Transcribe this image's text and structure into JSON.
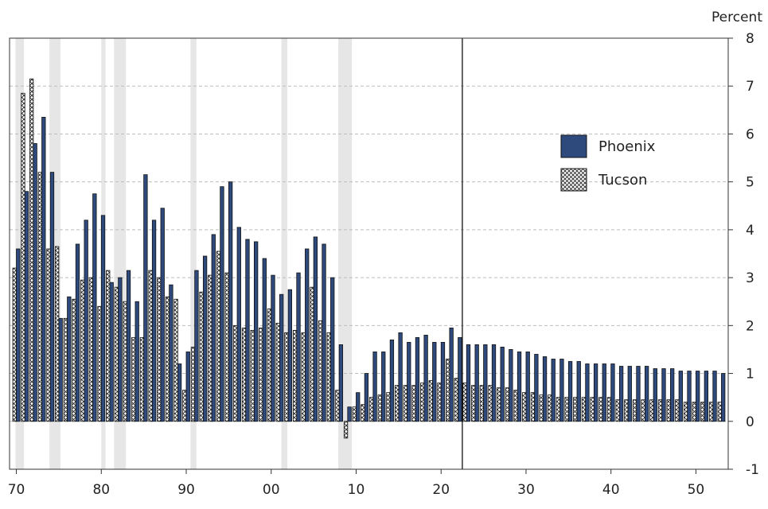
{
  "chart_data": {
    "type": "bar",
    "title": "",
    "xlabel": "",
    "ylabel": "Percent",
    "ylim": [
      -1,
      8
    ],
    "yticks": [
      "-1",
      "0",
      "1",
      "2",
      "3",
      "4",
      "5",
      "6",
      "7",
      "8"
    ],
    "x_range": [
      1970,
      2053
    ],
    "xticks": [
      {
        "year": 1970,
        "label": "70"
      },
      {
        "year": 1980,
        "label": "80"
      },
      {
        "year": 1990,
        "label": "90"
      },
      {
        "year": 2000,
        "label": "00"
      },
      {
        "year": 2010,
        "label": "10"
      },
      {
        "year": 2020,
        "label": "20"
      },
      {
        "year": 2030,
        "label": "30"
      },
      {
        "year": 2040,
        "label": "40"
      },
      {
        "year": 2050,
        "label": "50"
      }
    ],
    "forecast_start_year": 2022,
    "recession_periods": [
      [
        1969.9,
        1970.9
      ],
      [
        1973.9,
        1975.2
      ],
      [
        1980.0,
        1980.5
      ],
      [
        1981.5,
        1982.9
      ],
      [
        1990.5,
        1991.2
      ],
      [
        2001.2,
        2001.9
      ],
      [
        2007.9,
        2009.5
      ]
    ],
    "gridlines": "horizontal dashed",
    "legend_position": "right",
    "categories": [
      1970,
      1971,
      1972,
      1973,
      1974,
      1975,
      1976,
      1977,
      1978,
      1979,
      1980,
      1981,
      1982,
      1983,
      1984,
      1985,
      1986,
      1987,
      1988,
      1989,
      1990,
      1991,
      1992,
      1993,
      1994,
      1995,
      1996,
      1997,
      1998,
      1999,
      2000,
      2001,
      2002,
      2003,
      2004,
      2005,
      2006,
      2007,
      2008,
      2009,
      2010,
      2011,
      2012,
      2013,
      2014,
      2015,
      2016,
      2017,
      2018,
      2019,
      2020,
      2021,
      2022,
      2023,
      2024,
      2025,
      2026,
      2027,
      2028,
      2029,
      2030,
      2031,
      2032,
      2033,
      2034,
      2035,
      2036,
      2037,
      2038,
      2039,
      2040,
      2041,
      2042,
      2043,
      2044,
      2045,
      2046,
      2047,
      2048,
      2049,
      2050,
      2051,
      2052,
      2053
    ],
    "series": [
      {
        "name": "Phoenix",
        "pattern": "solid",
        "color": "#2e4a7d",
        "values": [
          3.6,
          4.8,
          5.8,
          6.35,
          5.2,
          2.15,
          2.6,
          3.7,
          4.2,
          4.75,
          4.3,
          2.9,
          3.0,
          3.15,
          2.5,
          5.15,
          4.2,
          4.45,
          2.85,
          1.2,
          1.45,
          3.15,
          3.45,
          3.9,
          4.9,
          5.0,
          4.05,
          3.8,
          3.75,
          3.4,
          3.05,
          2.65,
          2.75,
          3.1,
          3.6,
          3.85,
          3.7,
          3.0,
          1.6,
          0.3,
          0.6,
          1.0,
          1.45,
          1.45,
          1.7,
          1.85,
          1.65,
          1.75,
          1.8,
          1.65,
          1.65,
          1.95,
          1.75,
          1.6,
          1.6,
          1.6,
          1.6,
          1.55,
          1.5,
          1.45,
          1.45,
          1.4,
          1.35,
          1.3,
          1.3,
          1.25,
          1.25,
          1.2,
          1.2,
          1.2,
          1.2,
          1.15,
          1.15,
          1.15,
          1.15,
          1.1,
          1.1,
          1.1,
          1.05,
          1.05,
          1.05,
          1.05,
          1.05,
          1.0
        ]
      },
      {
        "name": "Tucson",
        "pattern": "crosshatch",
        "color": "#ffffff",
        "values": [
          3.2,
          6.85,
          7.15,
          5.2,
          3.6,
          3.65,
          2.15,
          2.55,
          2.95,
          3.0,
          2.4,
          3.15,
          2.8,
          2.5,
          1.75,
          1.75,
          3.15,
          3.0,
          2.6,
          2.55,
          0.65,
          1.55,
          2.7,
          3.05,
          3.55,
          3.1,
          2.0,
          1.95,
          1.9,
          1.95,
          2.35,
          2.05,
          1.85,
          1.9,
          1.85,
          2.8,
          2.1,
          1.85,
          0.65,
          -0.35,
          0.3,
          0.35,
          0.5,
          0.55,
          0.6,
          0.75,
          0.75,
          0.75,
          0.8,
          0.85,
          0.8,
          1.3,
          0.9,
          0.8,
          0.75,
          0.75,
          0.75,
          0.7,
          0.7,
          0.65,
          0.6,
          0.6,
          0.55,
          0.55,
          0.5,
          0.5,
          0.5,
          0.5,
          0.5,
          0.5,
          0.5,
          0.45,
          0.45,
          0.45,
          0.45,
          0.45,
          0.45,
          0.45,
          0.45,
          0.4,
          0.4,
          0.4,
          0.4,
          0.4
        ]
      }
    ]
  },
  "legend": {
    "items": [
      {
        "label": "Phoenix",
        "icon": "solid-swatch",
        "color": "#2e4a7d"
      },
      {
        "label": "Tucson",
        "icon": "crosshatch-swatch",
        "color": "#ffffff"
      }
    ]
  },
  "colors": {
    "phoenix_fill": "#2e4a7d",
    "phoenix_outline": "#111111",
    "tucson_outline": "#111111",
    "recession_shade": "#e6e6e6",
    "grid": "#bdbdbd",
    "forecast_line": "#111111"
  }
}
